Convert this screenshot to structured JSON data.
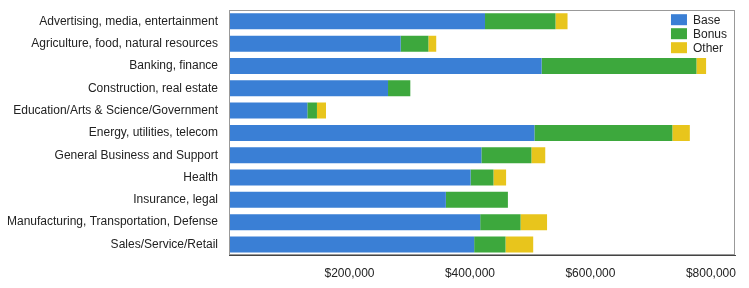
{
  "chart_data": {
    "type": "bar",
    "orientation": "horizontal",
    "stacked": true,
    "grid": false,
    "legend": "upper right",
    "categories": [
      "Advertising, media, entertainment",
      "Agriculture, food, natural resources",
      "Banking, finance",
      "Construction, real estate",
      "Education/Arts & Science/Government",
      "Energy, utilities, telecom",
      "General Business and Support",
      "Health",
      "Insurance, legal",
      "Manufacturing, Transportation, Defense",
      "Sales/Service/Retail"
    ],
    "series": [
      {
        "name": "Base",
        "color": "#3a7fd5",
        "values": [
          425000,
          285000,
          519000,
          264000,
          130000,
          507000,
          419000,
          401000,
          360000,
          417000,
          407000
        ]
      },
      {
        "name": "Bonus",
        "color": "#3da83d",
        "values": [
          117000,
          46000,
          257000,
          37000,
          16000,
          229000,
          83000,
          38000,
          103000,
          67000,
          52000
        ]
      },
      {
        "name": "Other",
        "color": "#e8c51c",
        "values": [
          20000,
          13000,
          16000,
          0,
          15000,
          29000,
          23000,
          21000,
          0,
          44000,
          46000
        ]
      }
    ],
    "xlim": [
      0,
      840000
    ],
    "xticks": [
      {
        "value": 200000,
        "label": "$200,000"
      },
      {
        "value": 400000,
        "label": "$400,000"
      },
      {
        "value": 600000,
        "label": "$600,000"
      },
      {
        "value": 800000,
        "label": "$800,000"
      }
    ]
  }
}
